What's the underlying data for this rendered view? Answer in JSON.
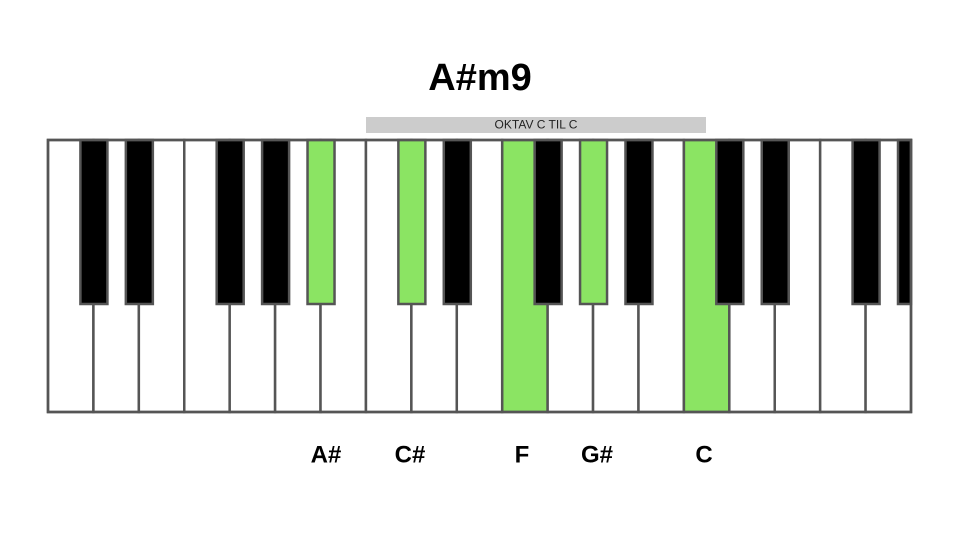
{
  "title": "A#m9",
  "octave_label": "OKTAV C TIL C",
  "notes": [
    "A#",
    "C#",
    "F",
    "G#",
    "C"
  ]
}
